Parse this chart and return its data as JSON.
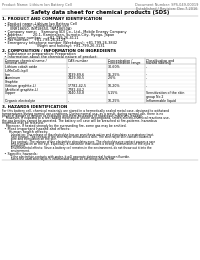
{
  "title": "Safety data sheet for chemical products (SDS)",
  "header_left": "Product Name: Lithium Ion Battery Cell",
  "header_right_line1": "Document Number: SPS-049-00019",
  "header_right_line2": "Established / Revision: Dec.7,2016",
  "section1_title": "1. PRODUCT AND COMPANY IDENTIFICATION",
  "section1_lines": [
    "  • Product name: Lithium Ion Battery Cell",
    "  • Product code: Cylindrical-type cell",
    "       (INR18650, INR18650, INR18650A)",
    "  • Company name:    Samsung SDI Co., Ltd., Mobile Energy Company",
    "  • Address:         20-1, Kaminaizen, Sumoto-City, Hyogo, Japan",
    "  • Telephone number:     +81-799-26-4111",
    "  • Fax number:    +81-799-26-4129",
    "  • Emergency telephone number (Weekdays): +81-799-26-3842",
    "                               (Night and holiday): +81-799-26-3131"
  ],
  "section2_title": "2. COMPOSITION / INFORMATION ON INGREDIENTS",
  "section2_lines": [
    "  • Substance or preparation: Preparation",
    "  • Information about the chemical nature of product:"
  ],
  "table_col_headers": [
    "Common chemical name /",
    "CAS number",
    "Concentration /",
    "Classification and"
  ],
  "table_col_headers2": [
    "Several name",
    "",
    "Concentration range",
    "hazard labeling"
  ],
  "section3_title": "3. HAZARDS IDENTIFICATION",
  "para_lines": [
    "For this battery cell, chemical materials are stored in a hermetically sealed metal case, designed to withstand",
    "temperatures during normal use-conditions. During normal use, as a result, during normal-use, there is no",
    "physical danger of ignition or explosion and there-no danger of hazardous materials leakage.",
    "    However, if exposed to a fire, added mechanical shock, decomposed, smten.electro-chemical reactions use,",
    "the gas besides cannot be operated. The battery cell case will be breached at fire-patterns, hazardous",
    "materials may be released.",
    "    Moreover, if heated strongly by the surrounding fire, some gas may be emitted."
  ],
  "bullet1": "  • Most important hazard and effects:",
  "human_health": "      Human health effects:",
  "human_lines": [
    "          Inhalation: The release of the electrolyte has an anesthesia action and stimulates a respiratory tract.",
    "          Skin contact: The release of the electrolyte stimulates a skin. The electrolyte skin contact causes a",
    "          sore and stimulation on the skin.",
    "          Eye contact: The release of the electrolyte stimulates eyes. The electrolyte eye contact causes a sore",
    "          and stimulation on the eye. Especially, a substance that causes a strong inflammation of the eyes is",
    "          contained.",
    "          Environmental effects: Since a battery cell remains in the environment, do not throw out it into the",
    "          environment."
  ],
  "bullet2": "  • Specific hazards:",
  "specific_lines": [
    "          If the electrolyte contacts with water, it will generate detrimental hydrogen fluoride.",
    "          Since the used electrolyte is inflammable liquid, do not bring close to fire."
  ],
  "bg_color": "#ffffff",
  "text_color": "#000000",
  "gray_color": "#666666",
  "line_color": "#999999"
}
